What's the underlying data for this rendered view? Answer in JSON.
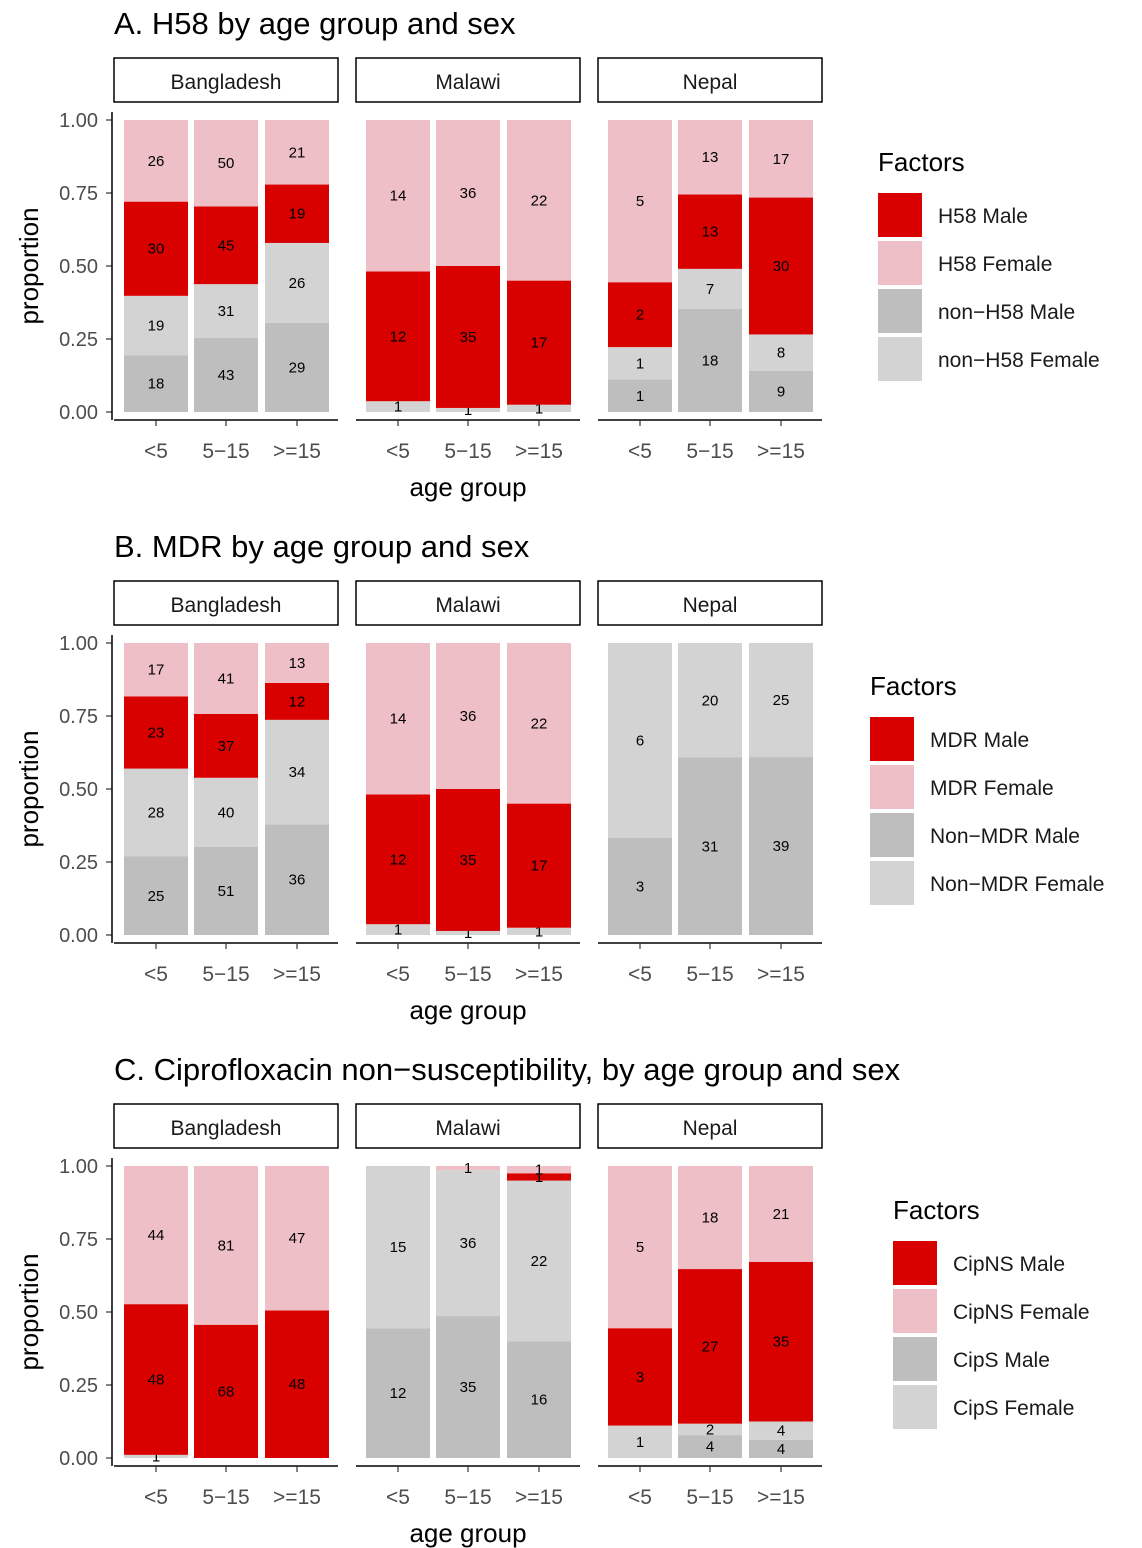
{
  "chart_data": [
    {
      "type": "bar",
      "stacked": true,
      "title": "A. H58 by age group and sex",
      "xlabel": "age group",
      "ylabel": "proportion",
      "ylim": [
        0,
        1
      ],
      "yticks": [
        "0.00",
        "0.25",
        "0.50",
        "0.75",
        "1.00"
      ],
      "categories": [
        "<5",
        "5−15",
        ">=15"
      ],
      "legend_title": "Factors",
      "legend_position": "right",
      "series": [
        {
          "name": "H58 Male",
          "color": "#D90000"
        },
        {
          "name": "H58 Female",
          "color": "#EFBFC8"
        },
        {
          "name": "non−H58 Male",
          "color": "#BEBEBE"
        },
        {
          "name": "non−H58 Female",
          "color": "#D3D3D3"
        }
      ],
      "stack_order_bottom_to_top": [
        "non−H58 Male",
        "non−H58 Female",
        "H58 Male",
        "H58 Female"
      ],
      "panels": [
        {
          "name": "Bangladesh",
          "counts": {
            "H58 Male": [
              30,
              45,
              19
            ],
            "H58 Female": [
              26,
              50,
              21
            ],
            "non−H58 Male": [
              18,
              43,
              29
            ],
            "non−H58 Female": [
              19,
              31,
              26
            ]
          }
        },
        {
          "name": "Malawi",
          "counts": {
            "H58 Male": [
              12,
              35,
              17
            ],
            "H58 Female": [
              14,
              36,
              22
            ],
            "non−H58 Male": [
              0,
              0,
              0
            ],
            "non−H58 Female": [
              1,
              1,
              1
            ]
          }
        },
        {
          "name": "Nepal",
          "counts": {
            "H58 Male": [
              2,
              13,
              30
            ],
            "H58 Female": [
              5,
              13,
              17
            ],
            "non−H58 Male": [
              1,
              18,
              9
            ],
            "non−H58 Female": [
              1,
              7,
              8
            ]
          }
        }
      ]
    },
    {
      "type": "bar",
      "stacked": true,
      "title": "B. MDR by age group and sex",
      "xlabel": "age group",
      "ylabel": "proportion",
      "ylim": [
        0,
        1
      ],
      "yticks": [
        "0.00",
        "0.25",
        "0.50",
        "0.75",
        "1.00"
      ],
      "categories": [
        "<5",
        "5−15",
        ">=15"
      ],
      "legend_title": "Factors",
      "legend_position": "right",
      "series": [
        {
          "name": "MDR Male",
          "color": "#D90000"
        },
        {
          "name": "MDR Female",
          "color": "#EFBFC8"
        },
        {
          "name": "Non−MDR Male",
          "color": "#BEBEBE"
        },
        {
          "name": "Non−MDR Female",
          "color": "#D3D3D3"
        }
      ],
      "stack_order_bottom_to_top": [
        "Non−MDR Male",
        "Non−MDR Female",
        "MDR Male",
        "MDR Female"
      ],
      "panels": [
        {
          "name": "Bangladesh",
          "counts": {
            "MDR Male": [
              23,
              37,
              12
            ],
            "MDR Female": [
              17,
              41,
              13
            ],
            "Non−MDR Male": [
              25,
              51,
              36
            ],
            "Non−MDR Female": [
              28,
              40,
              34
            ]
          }
        },
        {
          "name": "Malawi",
          "counts": {
            "MDR Male": [
              12,
              35,
              17
            ],
            "MDR Female": [
              14,
              36,
              22
            ],
            "Non−MDR Male": [
              0,
              0,
              0
            ],
            "Non−MDR Female": [
              1,
              1,
              1
            ]
          }
        },
        {
          "name": "Nepal",
          "counts": {
            "MDR Male": [
              0,
              0,
              0
            ],
            "MDR Female": [
              0,
              0,
              0
            ],
            "Non−MDR Male": [
              3,
              31,
              39
            ],
            "Non−MDR Female": [
              6,
              20,
              25
            ]
          }
        }
      ]
    },
    {
      "type": "bar",
      "stacked": true,
      "title": "C. Ciprofloxacin non−susceptibility, by age group and sex",
      "xlabel": "age group",
      "ylabel": "proportion",
      "ylim": [
        0,
        1
      ],
      "yticks": [
        "0.00",
        "0.25",
        "0.50",
        "0.75",
        "1.00"
      ],
      "categories": [
        "<5",
        "5−15",
        ">=15"
      ],
      "legend_title": "Factors",
      "legend_position": "right",
      "series": [
        {
          "name": "CipNS Male",
          "color": "#D90000"
        },
        {
          "name": "CipNS Female",
          "color": "#EFBFC8"
        },
        {
          "name": "CipS Male",
          "color": "#BEBEBE"
        },
        {
          "name": "CipS Female",
          "color": "#D3D3D3"
        }
      ],
      "stack_order_bottom_to_top": [
        "CipS Male",
        "CipS Female",
        "CipNS Male",
        "CipNS Female"
      ],
      "panels": [
        {
          "name": "Bangladesh",
          "counts": {
            "CipNS Male": [
              48,
              68,
              48
            ],
            "CipNS Female": [
              44,
              81,
              47
            ],
            "CipS Male": [
              0,
              0,
              0
            ],
            "CipS Female": [
              1,
              0,
              0
            ]
          }
        },
        {
          "name": "Malawi",
          "counts": {
            "CipNS Male": [
              0,
              0,
              1
            ],
            "CipNS Female": [
              0,
              1,
              1
            ],
            "CipS Male": [
              12,
              35,
              16
            ],
            "CipS Female": [
              15,
              36,
              22
            ]
          }
        },
        {
          "name": "Nepal",
          "counts": {
            "CipNS Male": [
              3,
              27,
              35
            ],
            "CipNS Female": [
              5,
              18,
              21
            ],
            "CipS Male": [
              0,
              4,
              4
            ],
            "CipS Female": [
              1,
              2,
              4
            ]
          }
        }
      ]
    }
  ]
}
